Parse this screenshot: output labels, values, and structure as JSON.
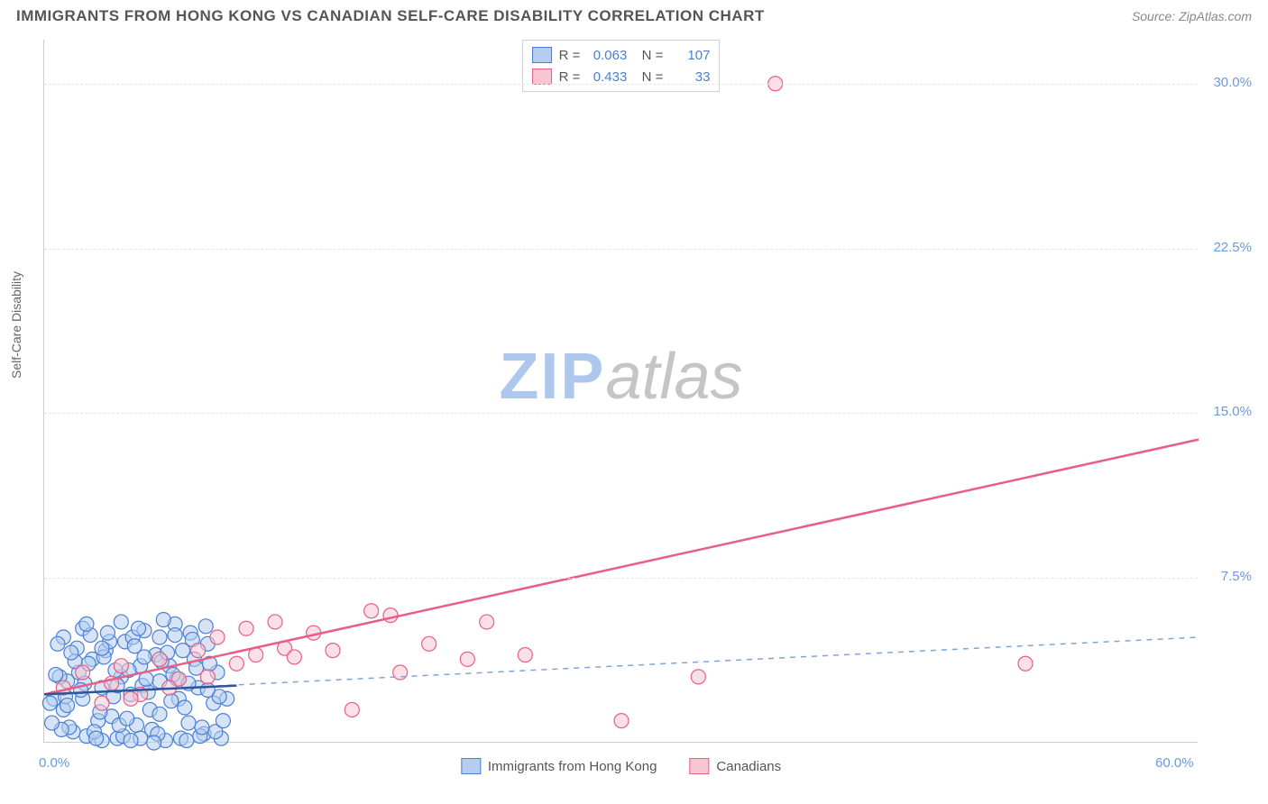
{
  "header": {
    "title": "IMMIGRANTS FROM HONG KONG VS CANADIAN SELF-CARE DISABILITY CORRELATION CHART",
    "source": "Source: ZipAtlas.com"
  },
  "watermark": {
    "zip": "ZIP",
    "atlas": "atlas"
  },
  "chart": {
    "type": "scatter",
    "background_color": "#ffffff",
    "xlim": [
      0,
      60
    ],
    "ylim": [
      0,
      32
    ],
    "grid_color": "#e5e5e5",
    "axis_color": "#cccccc",
    "xlabel": "",
    "ylabel": "Self-Care Disability",
    "label_fontsize": 14,
    "label_color": "#666666",
    "y_ticks": [
      7.5,
      15.0,
      22.5,
      30.0
    ],
    "y_tick_labels": [
      "7.5%",
      "15.0%",
      "22.5%",
      "30.0%"
    ],
    "y_tick_color": "#6a9add",
    "x_ticks": [
      0,
      60
    ],
    "x_tick_labels": [
      "0.0%",
      "60.0%"
    ],
    "x_tick_color": "#6a9add",
    "marker_radius": 8,
    "marker_opacity": 0.55,
    "marker_stroke_width": 1.2,
    "series": [
      {
        "name": "Immigrants from Hong Kong",
        "fill": "#b5cdef",
        "stroke": "#4a7fd6",
        "points": [
          [
            0.5,
            2.0
          ],
          [
            1.0,
            1.5
          ],
          [
            1.2,
            2.8
          ],
          [
            1.5,
            0.5
          ],
          [
            1.8,
            3.2
          ],
          [
            2.0,
            2.0
          ],
          [
            2.2,
            0.3
          ],
          [
            2.5,
            3.8
          ],
          [
            2.8,
            1.0
          ],
          [
            3.0,
            2.5
          ],
          [
            3.2,
            4.2
          ],
          [
            3.5,
            1.2
          ],
          [
            3.8,
            0.2
          ],
          [
            4.0,
            3.0
          ],
          [
            4.2,
            4.6
          ],
          [
            4.5,
            2.2
          ],
          [
            4.8,
            0.8
          ],
          [
            5.0,
            3.5
          ],
          [
            5.2,
            5.1
          ],
          [
            5.5,
            1.5
          ],
          [
            5.8,
            4.0
          ],
          [
            6.0,
            2.8
          ],
          [
            6.3,
            0.1
          ],
          [
            6.5,
            3.5
          ],
          [
            6.8,
            5.4
          ],
          [
            7.0,
            2.0
          ],
          [
            7.2,
            4.2
          ],
          [
            7.5,
            0.9
          ],
          [
            7.8,
            3.8
          ],
          [
            8.0,
            2.5
          ],
          [
            8.3,
            0.4
          ],
          [
            8.5,
            4.5
          ],
          [
            8.8,
            1.8
          ],
          [
            9.0,
            3.2
          ],
          [
            9.2,
            0.2
          ],
          [
            9.5,
            2.0
          ],
          [
            1.0,
            4.8
          ],
          [
            2.0,
            5.2
          ],
          [
            3.0,
            0.1
          ],
          [
            4.0,
            5.5
          ],
          [
            5.0,
            0.2
          ],
          [
            6.0,
            4.8
          ],
          [
            0.8,
            3.0
          ],
          [
            1.3,
            0.7
          ],
          [
            1.7,
            4.3
          ],
          [
            2.1,
            2.7
          ],
          [
            2.6,
            0.5
          ],
          [
            3.1,
            3.9
          ],
          [
            3.6,
            2.1
          ],
          [
            4.1,
            0.3
          ],
          [
            4.6,
            4.8
          ],
          [
            5.1,
            2.6
          ],
          [
            5.6,
            0.6
          ],
          [
            6.1,
            3.7
          ],
          [
            6.6,
            1.9
          ],
          [
            7.1,
            0.2
          ],
          [
            7.6,
            5.0
          ],
          [
            2.3,
            3.6
          ],
          [
            2.9,
            1.4
          ],
          [
            3.4,
            4.6
          ],
          [
            3.9,
            0.8
          ],
          [
            4.4,
            3.3
          ],
          [
            4.9,
            5.2
          ],
          [
            5.4,
            2.3
          ],
          [
            5.9,
            0.4
          ],
          [
            6.4,
            4.1
          ],
          [
            6.9,
            2.9
          ],
          [
            7.4,
            0.1
          ],
          [
            7.9,
            3.4
          ],
          [
            8.4,
            5.3
          ],
          [
            8.9,
            0.5
          ],
          [
            1.1,
            2.1
          ],
          [
            1.6,
            3.7
          ],
          [
            2.4,
            4.9
          ],
          [
            0.3,
            1.8
          ],
          [
            0.6,
            3.1
          ],
          [
            0.9,
            0.6
          ],
          [
            1.4,
            4.1
          ],
          [
            1.9,
            2.4
          ],
          [
            2.7,
            0.2
          ],
          [
            3.3,
            5.0
          ],
          [
            3.7,
            3.3
          ],
          [
            4.3,
            1.1
          ],
          [
            4.7,
            4.4
          ],
          [
            5.3,
            2.9
          ],
          [
            5.7,
            0.0
          ],
          [
            6.2,
            5.6
          ],
          [
            6.7,
            3.1
          ],
          [
            7.3,
            1.6
          ],
          [
            7.7,
            4.7
          ],
          [
            8.1,
            0.3
          ],
          [
            8.6,
            3.6
          ],
          [
            9.1,
            2.1
          ],
          [
            0.4,
            0.9
          ],
          [
            0.7,
            4.5
          ],
          [
            1.2,
            1.7
          ],
          [
            2.2,
            5.4
          ],
          [
            3.0,
            4.3
          ],
          [
            3.8,
            2.6
          ],
          [
            4.5,
            0.1
          ],
          [
            5.2,
            3.9
          ],
          [
            6.0,
            1.3
          ],
          [
            6.8,
            4.9
          ],
          [
            7.5,
            2.7
          ],
          [
            8.2,
            0.7
          ],
          [
            8.5,
            2.4
          ],
          [
            9.3,
            1.0
          ]
        ],
        "trend": {
          "style": "solid",
          "color": "#2d5599",
          "width": 2.5,
          "x1": 0,
          "y1": 2.2,
          "x2": 10,
          "y2": 2.6
        },
        "trend_dashed": {
          "style": "dashed",
          "color": "#7da4dc",
          "width": 1.5,
          "x1": 0,
          "y1": 2.2,
          "x2": 60,
          "y2": 4.8
        },
        "R": "0.063",
        "N": "107"
      },
      {
        "name": "Canadians",
        "fill": "#f6c7d3",
        "stroke": "#e75f85",
        "points": [
          [
            1.0,
            2.5
          ],
          [
            2.0,
            3.2
          ],
          [
            3.0,
            1.8
          ],
          [
            3.5,
            2.7
          ],
          [
            4.0,
            3.5
          ],
          [
            5.0,
            2.2
          ],
          [
            6.0,
            3.8
          ],
          [
            7.0,
            2.9
          ],
          [
            8.0,
            4.2
          ],
          [
            8.5,
            3.0
          ],
          [
            9.0,
            4.8
          ],
          [
            10.0,
            3.6
          ],
          [
            10.5,
            5.2
          ],
          [
            11.0,
            4.0
          ],
          [
            12.0,
            5.5
          ],
          [
            12.5,
            4.3
          ],
          [
            13.0,
            3.9
          ],
          [
            14.0,
            5.0
          ],
          [
            15.0,
            4.2
          ],
          [
            16.0,
            1.5
          ],
          [
            17.0,
            6.0
          ],
          [
            18.0,
            5.8
          ],
          [
            18.5,
            3.2
          ],
          [
            20.0,
            4.5
          ],
          [
            22.0,
            3.8
          ],
          [
            23.0,
            5.5
          ],
          [
            25.0,
            4.0
          ],
          [
            30.0,
            1.0
          ],
          [
            34.0,
            3.0
          ],
          [
            38.0,
            30.0
          ],
          [
            51.0,
            3.6
          ],
          [
            4.5,
            2.0
          ],
          [
            6.5,
            2.5
          ]
        ],
        "trend": {
          "style": "solid",
          "color": "#e75f85",
          "width": 2.5,
          "x1": 0,
          "y1": 2.2,
          "x2": 60,
          "y2": 13.8
        },
        "R": "0.433",
        "N": "33"
      }
    ],
    "legend_top": {
      "border_color": "#d0d0d0",
      "fontsize": 15
    },
    "legend_bottom": {
      "items": [
        {
          "label": "Immigrants from Hong Kong",
          "fill": "#b5cdef",
          "stroke": "#4a7fd6"
        },
        {
          "label": "Canadians",
          "fill": "#f6c7d3",
          "stroke": "#e75f85"
        }
      ]
    }
  }
}
